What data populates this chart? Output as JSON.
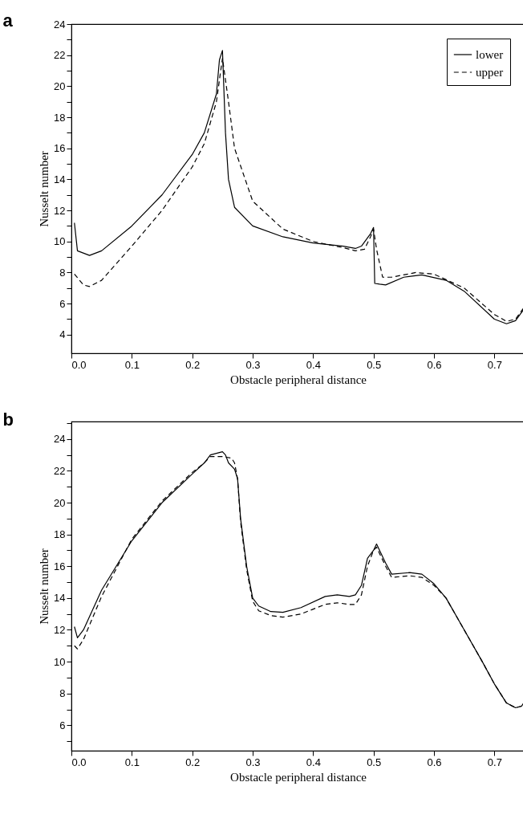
{
  "chart_data": [
    {
      "type": "line",
      "title": "a",
      "xlabel": "Obstacle peripheral distance",
      "ylabel": "Nusselt number",
      "xlim": [
        0,
        0.75
      ],
      "xticks": [
        {
          "value": 0,
          "label": "0.0"
        },
        0.1,
        0.2,
        0.3,
        0.4,
        0.5,
        0.6,
        0.7
      ],
      "ylim": [
        2.8,
        24
      ],
      "yticks": [
        4,
        {
          "value": 5,
          "label": null
        },
        6,
        {
          "value": 7,
          "label": null
        },
        8,
        {
          "value": 9,
          "label": null
        },
        10,
        {
          "value": 11,
          "label": null
        },
        12,
        {
          "value": 13,
          "label": null
        },
        14,
        {
          "value": 15,
          "label": null
        },
        16,
        {
          "value": 17,
          "label": null
        },
        18,
        {
          "value": 19,
          "label": null
        },
        20,
        {
          "value": 21,
          "label": null
        },
        22,
        {
          "value": 23,
          "label": null
        },
        24
      ],
      "grid": false,
      "legend": "top right",
      "marker": "none",
      "series": [
        {
          "name": "lower",
          "color": "#000000",
          "line_style": "solid",
          "x": [
            0.005,
            0.01,
            0.03,
            0.05,
            0.1,
            0.15,
            0.2,
            0.22,
            0.24,
            0.245,
            0.25,
            0.255,
            0.26,
            0.27,
            0.3,
            0.35,
            0.4,
            0.45,
            0.47,
            0.48,
            0.495,
            0.5,
            0.502,
            0.51,
            0.52,
            0.55,
            0.58,
            0.62,
            0.65,
            0.7,
            0.72,
            0.735,
            0.75
          ],
          "values": [
            11.2,
            9.4,
            9.1,
            9.4,
            11.0,
            13.0,
            15.6,
            17.0,
            19.5,
            21.7,
            22.3,
            17,
            14,
            12.2,
            11.0,
            10.3,
            9.9,
            9.7,
            9.55,
            9.7,
            10.5,
            10.9,
            7.3,
            7.25,
            7.2,
            7.7,
            7.85,
            7.5,
            6.8,
            5.0,
            4.7,
            4.9,
            5.7
          ]
        },
        {
          "name": "upper",
          "color": "#000000",
          "line_style": "dashed",
          "x": [
            0.005,
            0.02,
            0.03,
            0.05,
            0.1,
            0.15,
            0.2,
            0.22,
            0.24,
            0.25,
            0.26,
            0.27,
            0.3,
            0.35,
            0.4,
            0.45,
            0.47,
            0.485,
            0.495,
            0.5,
            0.505,
            0.515,
            0.53,
            0.57,
            0.6,
            0.65,
            0.7,
            0.72,
            0.735,
            0.75
          ],
          "values": [
            7.9,
            7.2,
            7.1,
            7.5,
            9.7,
            12.0,
            14.8,
            16.3,
            19.0,
            21.8,
            19,
            16.0,
            12.6,
            10.8,
            10.0,
            9.6,
            9.4,
            9.5,
            10.3,
            10.8,
            9.5,
            7.7,
            7.7,
            8.0,
            7.9,
            7.0,
            5.3,
            4.85,
            5.0,
            5.8
          ]
        }
      ]
    },
    {
      "type": "line",
      "title": "b",
      "xlabel": "Obstacle peripheral distance",
      "ylabel": "Nusselt number",
      "xlim": [
        0,
        0.75
      ],
      "xticks": [
        {
          "value": 0,
          "label": "0.0"
        },
        0.1,
        0.2,
        0.3,
        0.4,
        0.5,
        0.6,
        0.7
      ],
      "ylim": [
        4.4,
        25.1
      ],
      "yticks": [
        {
          "value": 5,
          "label": null
        },
        6,
        {
          "value": 7,
          "label": null
        },
        8,
        {
          "value": 9,
          "label": null
        },
        10,
        {
          "value": 11,
          "label": null
        },
        12,
        {
          "value": 13,
          "label": null
        },
        14,
        {
          "value": 15,
          "label": null
        },
        16,
        {
          "value": 17,
          "label": null
        },
        18,
        {
          "value": 19,
          "label": null
        },
        20,
        {
          "value": 21,
          "label": null
        },
        22,
        {
          "value": 23,
          "label": null
        },
        24,
        {
          "value": 25,
          "label": null
        }
      ],
      "grid": false,
      "legend": "top right",
      "marker": "none",
      "series": [
        {
          "name": "lower",
          "color": "#000000",
          "line_style": "solid",
          "x": [
            0.005,
            0.01,
            0.02,
            0.05,
            0.1,
            0.15,
            0.2,
            0.22,
            0.23,
            0.24,
            0.25,
            0.255,
            0.26,
            0.27,
            0.275,
            0.28,
            0.29,
            0.3,
            0.31,
            0.33,
            0.35,
            0.38,
            0.42,
            0.44,
            0.46,
            0.47,
            0.48,
            0.49,
            0.5,
            0.505,
            0.51,
            0.52,
            0.53,
            0.56,
            0.58,
            0.6,
            0.62,
            0.65,
            0.68,
            0.7,
            0.72,
            0.735,
            0.745,
            0.75
          ],
          "values": [
            12.2,
            11.5,
            12.0,
            14.5,
            17.6,
            20.0,
            21.8,
            22.5,
            23.0,
            23.1,
            23.2,
            23.0,
            22.5,
            22.1,
            21.5,
            19,
            16.0,
            14.0,
            13.5,
            13.15,
            13.1,
            13.4,
            14.1,
            14.2,
            14.1,
            14.2,
            14.8,
            16.5,
            17.0,
            17.4,
            17.0,
            16.2,
            15.5,
            15.6,
            15.5,
            14.9,
            14.0,
            12.0,
            10.0,
            8.6,
            7.4,
            7.1,
            7.2,
            7.5
          ]
        },
        {
          "name": "upper",
          "color": "#000000",
          "line_style": "dashed",
          "x": [
            0.005,
            0.01,
            0.02,
            0.05,
            0.1,
            0.15,
            0.2,
            0.22,
            0.23,
            0.25,
            0.265,
            0.27,
            0.275,
            0.28,
            0.29,
            0.3,
            0.31,
            0.33,
            0.35,
            0.38,
            0.42,
            0.44,
            0.46,
            0.47,
            0.48,
            0.49,
            0.5,
            0.505,
            0.51,
            0.52,
            0.53,
            0.56,
            0.58,
            0.6,
            0.62,
            0.65,
            0.68,
            0.7,
            0.72,
            0.735,
            0.745,
            0.75
          ],
          "values": [
            11.0,
            10.8,
            11.4,
            14.1,
            17.7,
            20.1,
            21.9,
            22.5,
            22.9,
            22.9,
            22.8,
            22.5,
            21.5,
            18.8,
            15.8,
            13.8,
            13.2,
            12.9,
            12.8,
            13.0,
            13.6,
            13.7,
            13.6,
            13.6,
            14.2,
            16.0,
            17.0,
            17.2,
            16.8,
            16.0,
            15.3,
            15.4,
            15.3,
            14.8,
            14.0,
            12.0,
            10.0,
            8.6,
            7.4,
            7.1,
            7.2,
            7.5
          ]
        }
      ]
    }
  ]
}
